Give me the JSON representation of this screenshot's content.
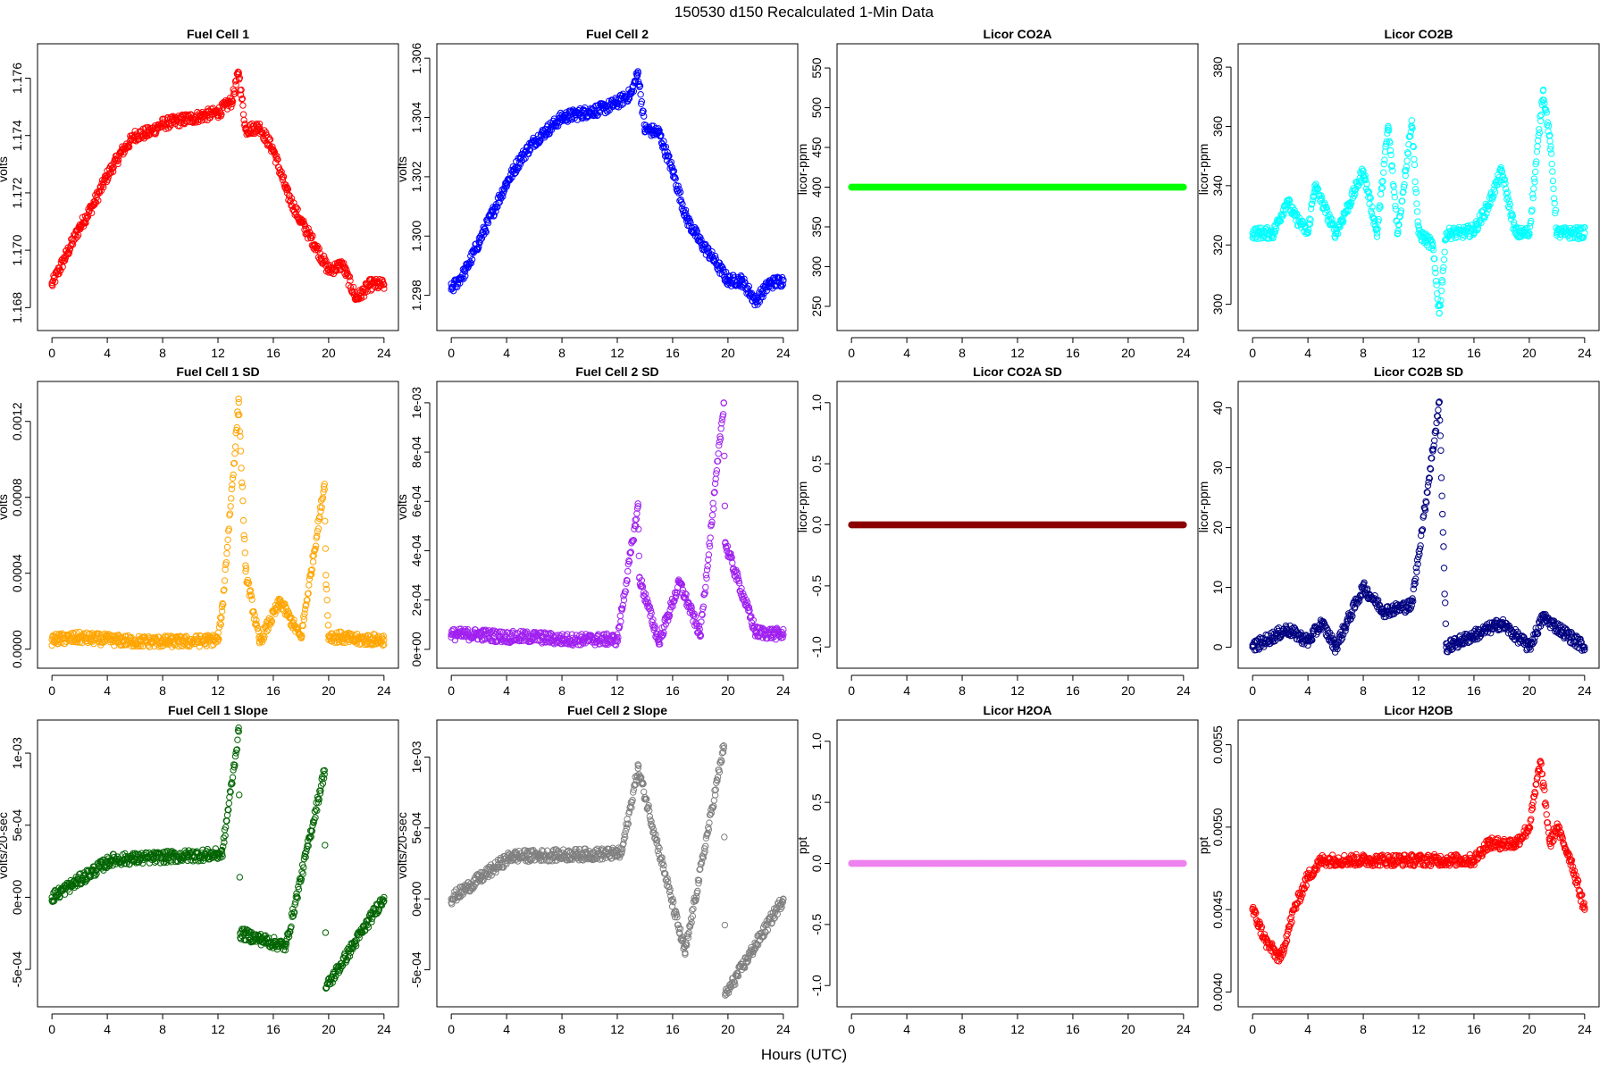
{
  "figure": {
    "title": "150530   d150   Recalculated 1-Min Data",
    "xlabel": "Hours (UTC)"
  },
  "chart_data": [
    {
      "id": "fc1",
      "type": "scatter",
      "title": "Fuel Cell 1",
      "ylabel": "volts",
      "color": "#ff0000",
      "xlim": [
        0,
        24
      ],
      "xticks": [
        0,
        4,
        8,
        12,
        16,
        20,
        24
      ],
      "xtick_labels": [
        "0",
        "4",
        "8",
        "12",
        "16",
        "20",
        "24"
      ],
      "ylim": [
        1.1676,
        1.1768
      ],
      "yticks": [
        1.168,
        1.17,
        1.172,
        1.174,
        1.176
      ],
      "ytick_labels": [
        "1.168",
        "1.170",
        "1.172",
        "1.174",
        "1.176"
      ],
      "x": [
        0,
        1,
        2,
        3,
        4,
        5,
        6,
        7,
        8,
        9,
        10,
        11,
        12,
        13,
        13.5,
        14,
        15,
        16,
        17,
        18,
        19,
        20,
        21,
        22,
        23,
        24
      ],
      "y": [
        1.1688,
        1.1698,
        1.1708,
        1.1716,
        1.1726,
        1.1734,
        1.174,
        1.1741,
        1.1744,
        1.1745,
        1.1746,
        1.1747,
        1.1748,
        1.1752,
        1.1762,
        1.1742,
        1.1743,
        1.1735,
        1.172,
        1.171,
        1.1702,
        1.1693,
        1.1695,
        1.1683,
        1.1688,
        1.1688
      ]
    },
    {
      "id": "fc2",
      "type": "scatter",
      "title": "Fuel Cell 2",
      "ylabel": "volts",
      "color": "#0000ff",
      "xlim": [
        0,
        24
      ],
      "xticks": [
        0,
        4,
        8,
        12,
        16,
        20,
        24
      ],
      "xtick_labels": [
        "0",
        "4",
        "8",
        "12",
        "16",
        "20",
        "24"
      ],
      "ylim": [
        1.2972,
        1.3061
      ],
      "yticks": [
        1.298,
        1.3,
        1.302,
        1.304,
        1.306
      ],
      "ytick_labels": [
        "1.298",
        "1.300",
        "1.302",
        "1.304",
        "1.306"
      ],
      "x": [
        0,
        1,
        2,
        3,
        4,
        5,
        6,
        7,
        8,
        9,
        10,
        11,
        12,
        13,
        13.5,
        14,
        15,
        16,
        17,
        18,
        19,
        20,
        21,
        22,
        23,
        24
      ],
      "y": [
        1.2982,
        1.2988,
        1.2998,
        1.3008,
        1.3018,
        1.3026,
        1.3032,
        1.3036,
        1.304,
        1.3041,
        1.3042,
        1.3043,
        1.3045,
        1.3048,
        1.3055,
        1.3036,
        1.3035,
        1.3022,
        1.3006,
        1.2998,
        1.2992,
        1.2985,
        1.2985,
        1.2978,
        1.2984,
        1.2985
      ]
    },
    {
      "id": "co2a",
      "type": "scatter",
      "title": "Licor CO2A",
      "ylabel": "licor-ppm",
      "color": "#00ff00",
      "xlim": [
        0,
        24
      ],
      "xticks": [
        0,
        4,
        8,
        12,
        16,
        20,
        24
      ],
      "xtick_labels": [
        "0",
        "4",
        "8",
        "12",
        "16",
        "20",
        "24"
      ],
      "ylim": [
        234,
        566
      ],
      "yticks": [
        250,
        300,
        350,
        400,
        450,
        500,
        550
      ],
      "ytick_labels": [
        "250",
        "300",
        "350",
        "400",
        "450",
        "500",
        "550"
      ],
      "x": [
        0,
        24
      ],
      "y": [
        400,
        400
      ]
    },
    {
      "id": "co2b",
      "type": "scatter",
      "title": "Licor CO2B",
      "ylabel": "licor-ppm",
      "color": "#00ffff",
      "xlim": [
        0,
        24
      ],
      "xticks": [
        0,
        4,
        8,
        12,
        16,
        20,
        24
      ],
      "xtick_labels": [
        "0",
        "4",
        "8",
        "12",
        "16",
        "20",
        "24"
      ],
      "ylim": [
        295,
        384
      ],
      "yticks": [
        300,
        320,
        340,
        360,
        380
      ],
      "ytick_labels": [
        "300",
        "320",
        "340",
        "360",
        "380"
      ],
      "x": [
        0,
        1.5,
        2.5,
        3,
        4,
        4.5,
        6,
        7,
        8,
        9,
        9.8,
        10.5,
        11.5,
        12,
        13,
        13.5,
        14,
        15,
        16,
        17,
        18,
        19,
        20,
        21,
        21.5,
        22,
        23,
        24
      ],
      "y": [
        324,
        324,
        335,
        330,
        324,
        340,
        324,
        334,
        345,
        324,
        360,
        324,
        362,
        324,
        320,
        297,
        324,
        324,
        325,
        333,
        345,
        324,
        324,
        372,
        355,
        324,
        324,
        324
      ]
    },
    {
      "id": "fc1sd",
      "type": "scatter",
      "title": "Fuel Cell 1 SD",
      "ylabel": "volts",
      "color": "#ffa500",
      "xlim": [
        0,
        24
      ],
      "xticks": [
        0,
        4,
        8,
        12,
        16,
        20,
        24
      ],
      "xtick_labels": [
        "0",
        "4",
        "8",
        "12",
        "16",
        "20",
        "24"
      ],
      "ylim": [
        -4e-05,
        0.00135
      ],
      "yticks": [
        0,
        0.0004,
        0.0008,
        0.0012
      ],
      "ytick_labels": [
        "0.0000",
        "0.0004",
        "0.0008",
        "0.0012"
      ],
      "x": [
        0,
        2,
        4,
        6,
        8,
        10,
        12,
        12.3,
        13.5,
        14,
        15,
        16.5,
        18,
        19.7,
        19.8,
        20,
        22,
        24
      ],
      "y": [
        5e-05,
        6e-05,
        5e-05,
        4e-05,
        4e-05,
        4e-05,
        5e-05,
        0.0002,
        0.0013,
        0.00041,
        4e-05,
        0.00025,
        6e-05,
        0.00087,
        0.00039,
        7e-05,
        5e-05,
        5e-05
      ]
    },
    {
      "id": "fc2sd",
      "type": "scatter",
      "title": "Fuel Cell 2 SD",
      "ylabel": "volts",
      "color": "#a020f0",
      "xlim": [
        0,
        24
      ],
      "xticks": [
        0,
        4,
        8,
        12,
        16,
        20,
        24
      ],
      "xtick_labels": [
        "0",
        "4",
        "8",
        "12",
        "16",
        "20",
        "24"
      ],
      "ylim": [
        -3e-05,
        0.00104
      ],
      "yticks": [
        0,
        0.0002,
        0.0004,
        0.0006,
        0.0008,
        0.001
      ],
      "ytick_labels": [
        "0e+00",
        "2e-04",
        "4e-04",
        "6e-04",
        "8e-04",
        "1e-03"
      ],
      "x": [
        0,
        2,
        4,
        6,
        8,
        10,
        12,
        13.5,
        13.6,
        15,
        16.5,
        18,
        19.7,
        19.8,
        22,
        24
      ],
      "y": [
        6e-05,
        6e-05,
        5e-05,
        5e-05,
        4e-05,
        4e-05,
        4e-05,
        0.00058,
        0.00029,
        3e-05,
        0.00027,
        6e-05,
        0.001,
        0.00043,
        7e-05,
        6e-05
      ]
    },
    {
      "id": "co2asd",
      "type": "scatter",
      "title": "Licor CO2A SD",
      "ylabel": "licor-ppm",
      "color": "#8b0000",
      "xlim": [
        0,
        24
      ],
      "xticks": [
        0,
        4,
        8,
        12,
        16,
        20,
        24
      ],
      "xtick_labels": [
        "0",
        "4",
        "8",
        "12",
        "16",
        "20",
        "24"
      ],
      "ylim": [
        -1.08,
        1.08
      ],
      "yticks": [
        -1,
        -0.5,
        0,
        0.5,
        1
      ],
      "ytick_labels": [
        "-1.0",
        "-0.5",
        "0.0",
        "0.5",
        "1.0"
      ],
      "x": [
        0,
        24
      ],
      "y": [
        0,
        0
      ]
    },
    {
      "id": "co2bsd",
      "type": "scatter",
      "title": "Licor CO2B SD",
      "ylabel": "licor-ppm",
      "color": "#000080",
      "xlim": [
        0,
        24
      ],
      "xticks": [
        0,
        4,
        8,
        12,
        16,
        20,
        24
      ],
      "xtick_labels": [
        "0",
        "4",
        "8",
        "12",
        "16",
        "20",
        "24"
      ],
      "ylim": [
        -1.6,
        42.5
      ],
      "yticks": [
        0,
        10,
        20,
        30,
        40
      ],
      "ytick_labels": [
        "0",
        "10",
        "20",
        "30",
        "40"
      ],
      "x": [
        0,
        2.5,
        4,
        5,
        6,
        8,
        9.5,
        11.5,
        13.5,
        14,
        16,
        18,
        20,
        21,
        24
      ],
      "y": [
        0,
        3,
        1,
        4,
        0,
        10,
        6,
        7,
        41,
        0,
        2,
        4,
        0,
        5,
        0
      ]
    },
    {
      "id": "fc1slope",
      "type": "scatter",
      "title": "Fuel Cell 1 Slope",
      "ylabel": "volts/20-sec",
      "color": "#006400",
      "xlim": [
        0,
        24
      ],
      "xticks": [
        0,
        4,
        8,
        12,
        16,
        20,
        24
      ],
      "xtick_labels": [
        "0",
        "4",
        "8",
        "12",
        "16",
        "20",
        "24"
      ],
      "ylim": [
        -0.00068,
        0.00115
      ],
      "yticks": [
        -0.0005,
        0,
        0.0005,
        0.001
      ],
      "ytick_labels": [
        "-5e-04",
        "0e+00",
        "5e-04",
        "1e-03"
      ],
      "x": [
        0,
        4.3,
        12.3,
        13.5,
        13.6,
        16.9,
        19.7,
        19.8,
        24
      ],
      "y": [
        0,
        0.00026,
        0.0003,
        0.00115,
        -0.00025,
        -0.00034,
        0.00088,
        -0.00063,
        0
      ]
    },
    {
      "id": "fc2slope",
      "type": "scatter",
      "title": "Fuel Cell 2 Slope",
      "ylabel": "volts/20-sec",
      "color": "#808080",
      "xlim": [
        0,
        24
      ],
      "xticks": [
        0,
        4,
        8,
        12,
        16,
        20,
        24
      ],
      "xtick_labels": [
        "0",
        "4",
        "8",
        "12",
        "16",
        "20",
        "24"
      ],
      "ylim": [
        -0.00068,
        0.00118
      ],
      "yticks": [
        -0.0005,
        0,
        0.0005,
        0.001
      ],
      "ytick_labels": [
        "-5e-04",
        "0e+00",
        "5e-04",
        "1e-03"
      ],
      "x": [
        0,
        4.3,
        12.3,
        13.5,
        16.9,
        19.7,
        19.8,
        24
      ],
      "y": [
        0,
        0.0003,
        0.00032,
        0.00092,
        -0.00038,
        0.00108,
        -0.00068,
        0
      ]
    },
    {
      "id": "h2oa",
      "type": "scatter",
      "title": "Licor H2OA",
      "ylabel": "ppt",
      "color": "#ee82ee",
      "xlim": [
        0,
        24
      ],
      "xticks": [
        0,
        4,
        8,
        12,
        16,
        20,
        24
      ],
      "xtick_labels": [
        "0",
        "4",
        "8",
        "12",
        "16",
        "20",
        "24"
      ],
      "ylim": [
        -1.08,
        1.08
      ],
      "yticks": [
        -1,
        -0.5,
        0,
        0.5,
        1
      ],
      "ytick_labels": [
        "-1.0",
        "-0.5",
        "0.0",
        "0.5",
        "1.0"
      ],
      "x": [
        0,
        24
      ],
      "y": [
        0,
        0
      ]
    },
    {
      "id": "h2ob",
      "type": "scatter",
      "title": "Licor H2OB",
      "ylabel": "ppt",
      "color": "#ff0000",
      "xlim": [
        0,
        24
      ],
      "xticks": [
        0,
        4,
        8,
        12,
        16,
        20,
        24
      ],
      "xtick_labels": [
        "0",
        "4",
        "8",
        "12",
        "16",
        "20",
        "24"
      ],
      "ylim": [
        0.00398,
        0.00558
      ],
      "yticks": [
        0.004,
        0.0045,
        0.005,
        0.0055
      ],
      "ytick_labels": [
        "0.0040",
        "0.0045",
        "0.0050",
        "0.0055"
      ],
      "x": [
        0,
        1,
        2,
        3,
        4,
        5,
        6,
        7,
        8,
        9,
        10,
        11,
        12,
        13,
        14,
        15,
        16,
        17,
        18,
        19,
        20,
        20.8,
        21.5,
        22,
        23,
        24
      ],
      "y": [
        0.0045,
        0.0043,
        0.0042,
        0.0045,
        0.0047,
        0.0048,
        0.0048,
        0.0048,
        0.0048,
        0.0048,
        0.0048,
        0.0048,
        0.0048,
        0.0048,
        0.0048,
        0.0048,
        0.0048,
        0.0049,
        0.0049,
        0.0049,
        0.005,
        0.0054,
        0.0049,
        0.005,
        0.0048,
        0.0045
      ]
    }
  ]
}
